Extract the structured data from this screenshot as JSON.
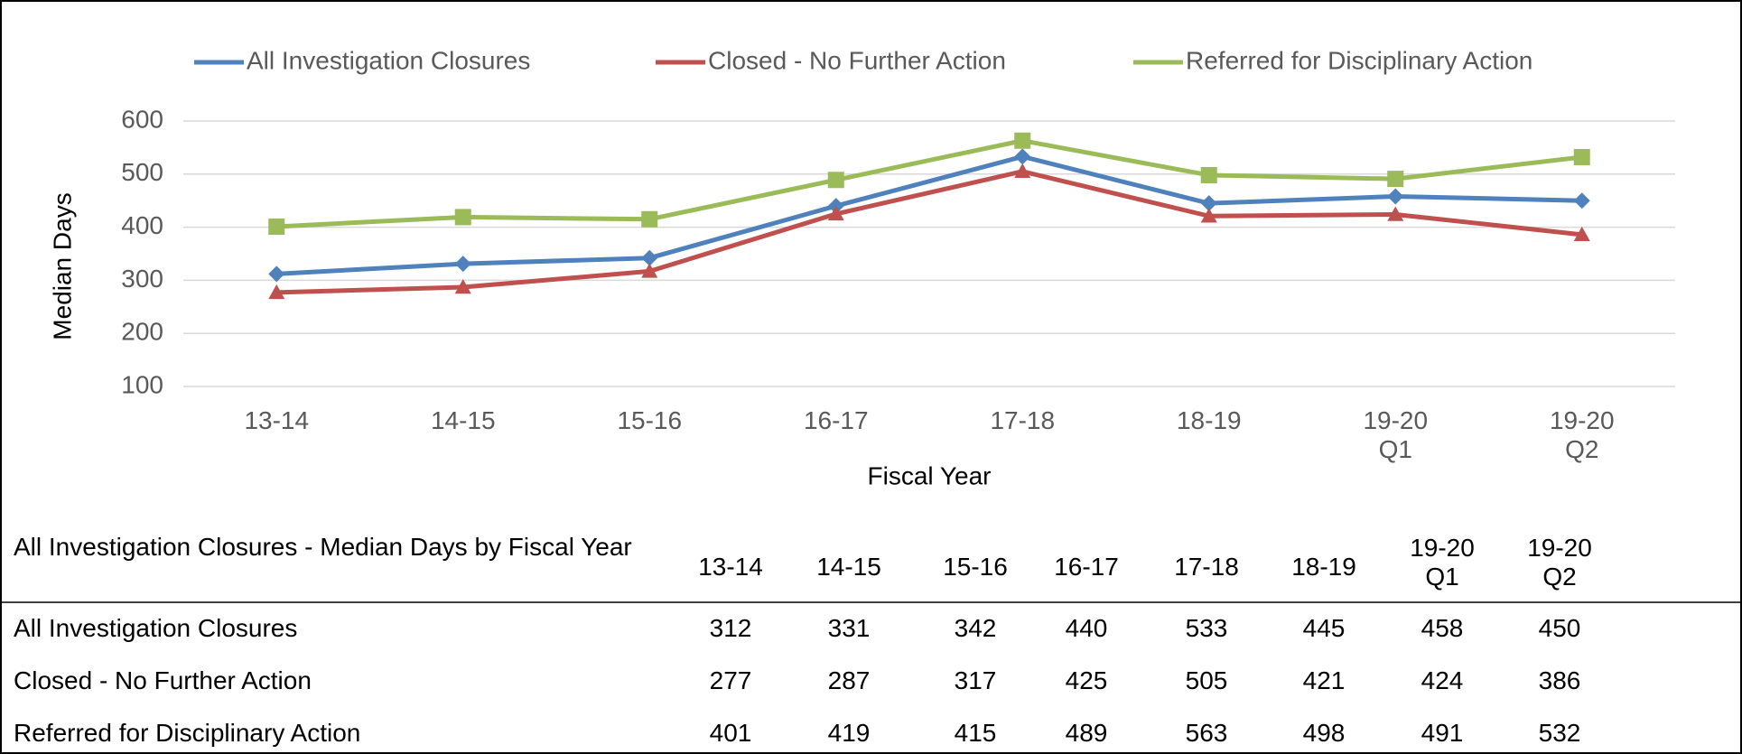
{
  "chart_data": {
    "type": "line",
    "categories": [
      "13-14",
      "14-15",
      "15-16",
      "16-17",
      "17-18",
      "18-19",
      "19-20 Q1",
      "19-20 Q2"
    ],
    "series": [
      {
        "name": "All Investigation Closures",
        "color": "#4f81bd",
        "marker": "diamond",
        "values": [
          312,
          331,
          342,
          440,
          533,
          445,
          458,
          450
        ]
      },
      {
        "name": "Closed - No Further Action",
        "color": "#c0504d",
        "marker": "triangle",
        "values": [
          277,
          287,
          317,
          425,
          505,
          421,
          424,
          386
        ]
      },
      {
        "name": "Referred for Disciplinary Action",
        "color": "#9bbb59",
        "marker": "square",
        "values": [
          401,
          419,
          415,
          489,
          563,
          498,
          491,
          532
        ]
      }
    ],
    "ylim": [
      100,
      600
    ],
    "yticks": [
      100,
      200,
      300,
      400,
      500,
      600
    ],
    "grid": true,
    "ylabel": "Median Days",
    "xlabel": "Fiscal Year",
    "legend": "top"
  },
  "table": {
    "title": "All Investigation Closures - Median Days by Fiscal Year"
  }
}
